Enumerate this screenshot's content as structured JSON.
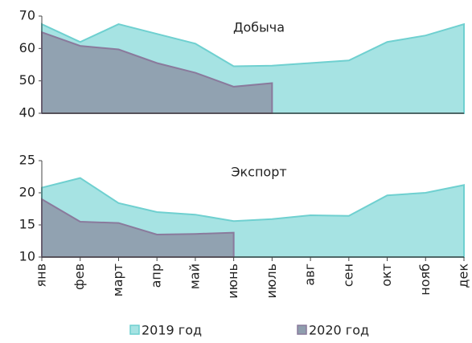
{
  "chart_data": [
    {
      "type": "area",
      "annotation": "Добыча",
      "ylim": [
        40,
        70
      ],
      "yticks": [
        40,
        50,
        60,
        70
      ],
      "series": [
        {
          "color": "#a6e3e3",
          "values": [
            67.5,
            62,
            67.5,
            64.5,
            61.5,
            54.5,
            54.7,
            55.5,
            56.3,
            62,
            64,
            67.5
          ]
        },
        {
          "color": "#8f9eae",
          "values": [
            65,
            60.8,
            59.7,
            55.5,
            52.5,
            48.2,
            49.3,
            null,
            null,
            null,
            null,
            null
          ]
        }
      ]
    },
    {
      "type": "area",
      "annotation": "Экспорт",
      "ylim": [
        10,
        25
      ],
      "yticks": [
        10,
        15,
        20,
        25
      ],
      "categories": [
        "янв",
        "фев",
        "март",
        "апр",
        "май",
        "июнь",
        "июль",
        "авг",
        "сен",
        "окт",
        "нояб",
        "дек"
      ],
      "series": [
        {
          "name": "2019 год",
          "color": "#a6e3e3",
          "values": [
            20.8,
            22.3,
            18.4,
            17,
            16.6,
            15.6,
            15.9,
            16.5,
            16.4,
            19.6,
            20,
            21.2
          ]
        },
        {
          "name": "2020 год",
          "color": "#8f9eae",
          "values": [
            19,
            15.5,
            15.3,
            13.5,
            13.6,
            13.8,
            null,
            null,
            null,
            null,
            null,
            null
          ]
        }
      ]
    }
  ]
}
